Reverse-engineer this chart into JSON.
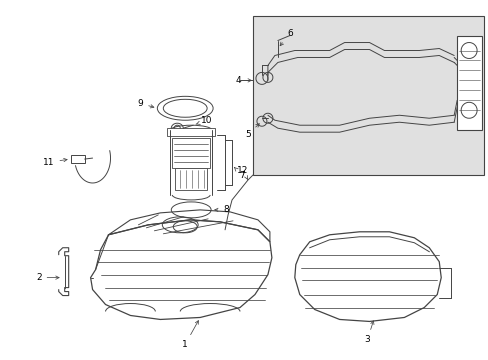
{
  "bg_color": "#ffffff",
  "line_color": "#444444",
  "label_color": "#000000",
  "inset_bg": "#e0e0e0",
  "fig_width": 4.89,
  "fig_height": 3.6,
  "dpi": 100
}
